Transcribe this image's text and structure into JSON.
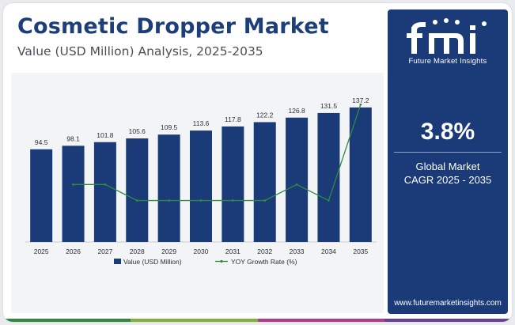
{
  "header": {
    "title": "Cosmetic Dropper Market",
    "subtitle": "Value (USD Million) Analysis, 2025-2035"
  },
  "sidebar": {
    "logo_letters": "fmi",
    "logo_text": "Future Market Insights",
    "cagr_value": "3.8%",
    "cagr_line1": "Global Market",
    "cagr_line2": "CAGR 2025 - 2035",
    "website": "www.futuremarketinsights.com"
  },
  "colors": {
    "brand_navy": "#1b3a78",
    "bar": "#1b3a78",
    "line": "#2e8b3d",
    "bottom_bar": [
      "#2e8b3d",
      "#7fb23a",
      "#b33a8a",
      "#6a3d9a"
    ]
  },
  "chart_data": {
    "type": "bar",
    "categories": [
      "2025",
      "2026",
      "2027",
      "2028",
      "2029",
      "2030",
      "2031",
      "2032",
      "2033",
      "2034",
      "2035"
    ],
    "series": [
      {
        "name": "Value (USD Million)",
        "type": "bar",
        "values": [
          94.5,
          98.1,
          101.8,
          105.6,
          109.5,
          113.6,
          117.8,
          122.2,
          126.8,
          131.5,
          137.2
        ]
      },
      {
        "name": "YOY Growth Rate (%)",
        "type": "line",
        "values": [
          null,
          3.8,
          3.8,
          3.7,
          3.7,
          3.7,
          3.7,
          3.7,
          3.8,
          3.7,
          4.3
        ]
      }
    ],
    "value_labels": [
      "94.5",
      "98.1",
      "101.8",
      "105.6",
      "109.5",
      "113.6",
      "117.8",
      "122.2",
      "126.8",
      "131.5",
      "137.2"
    ],
    "ylim": [
      0,
      150
    ],
    "y2lim": [
      3.5,
      4.4
    ],
    "grid": false,
    "legend_position": "bottom"
  }
}
